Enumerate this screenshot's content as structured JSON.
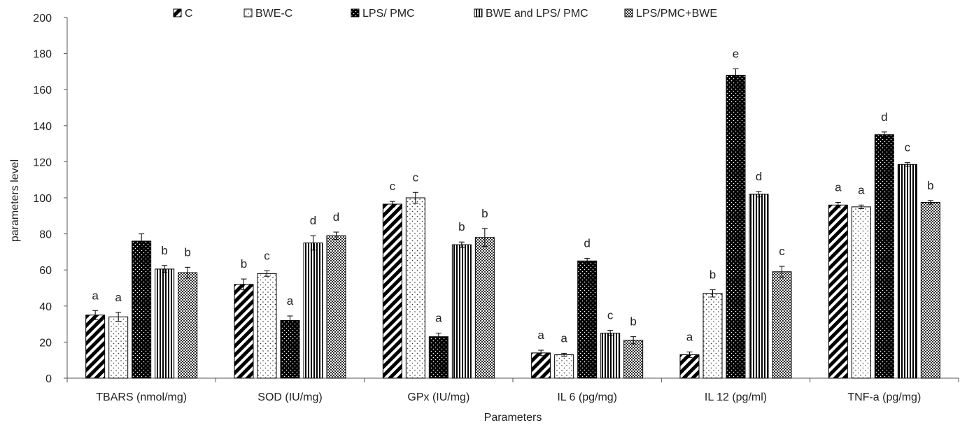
{
  "chart_data": {
    "type": "bar",
    "xlabel": "Parameters",
    "ylabel": "parameters level",
    "ylim": [
      0,
      200
    ],
    "yticks": [
      0,
      20,
      40,
      60,
      80,
      100,
      120,
      140,
      160,
      180,
      200
    ],
    "grid": false,
    "legend_position": "top",
    "categories": [
      "TBARS (nmol/mg)",
      "SOD (IU/mg)",
      "GPx (IU/mg)",
      "IL 6 (pg/mg)",
      "IL 12 (pg/ml)",
      "TNF-a (pg/mg)"
    ],
    "series": [
      {
        "name": "C",
        "pattern": "diagonal-stripes",
        "values": [
          35,
          52,
          96.5,
          14,
          13,
          96
        ],
        "errors": [
          2.5,
          3,
          1.5,
          1.5,
          1.5,
          1.5
        ],
        "labels": [
          "a",
          "b",
          "c",
          "a",
          "a",
          "a"
        ]
      },
      {
        "name": "BWE-C",
        "pattern": "dots",
        "values": [
          34,
          58,
          100,
          13,
          47,
          95
        ],
        "errors": [
          2.5,
          1.5,
          3,
          0.8,
          2,
          1
        ],
        "labels": [
          "a",
          "c",
          "c",
          "a",
          "b",
          "a"
        ]
      },
      {
        "name": "LPS/ PMC",
        "pattern": "black-dots",
        "values": [
          76,
          32,
          23,
          65,
          168,
          135
        ],
        "errors": [
          4,
          2.5,
          2,
          1.5,
          3.5,
          1.5
        ],
        "labels": [
          "",
          "a",
          "a",
          "d",
          "e",
          "d"
        ]
      },
      {
        "name": "BWE and LPS/ PMC",
        "pattern": "vertical-stripes",
        "values": [
          60.5,
          75,
          74,
          25,
          102,
          118.5
        ],
        "errors": [
          2,
          4,
          1.5,
          1.5,
          1.5,
          1
        ],
        "labels": [
          "b",
          "d",
          "b",
          "c",
          "d",
          "c"
        ]
      },
      {
        "name": "LPS/PMC+BWE",
        "pattern": "checker",
        "values": [
          58.5,
          79,
          78,
          21,
          59,
          97.5
        ],
        "errors": [
          3,
          2,
          5,
          2,
          3,
          1
        ],
        "labels": [
          "b",
          "d",
          "b",
          "b",
          "c",
          "b"
        ]
      }
    ]
  }
}
